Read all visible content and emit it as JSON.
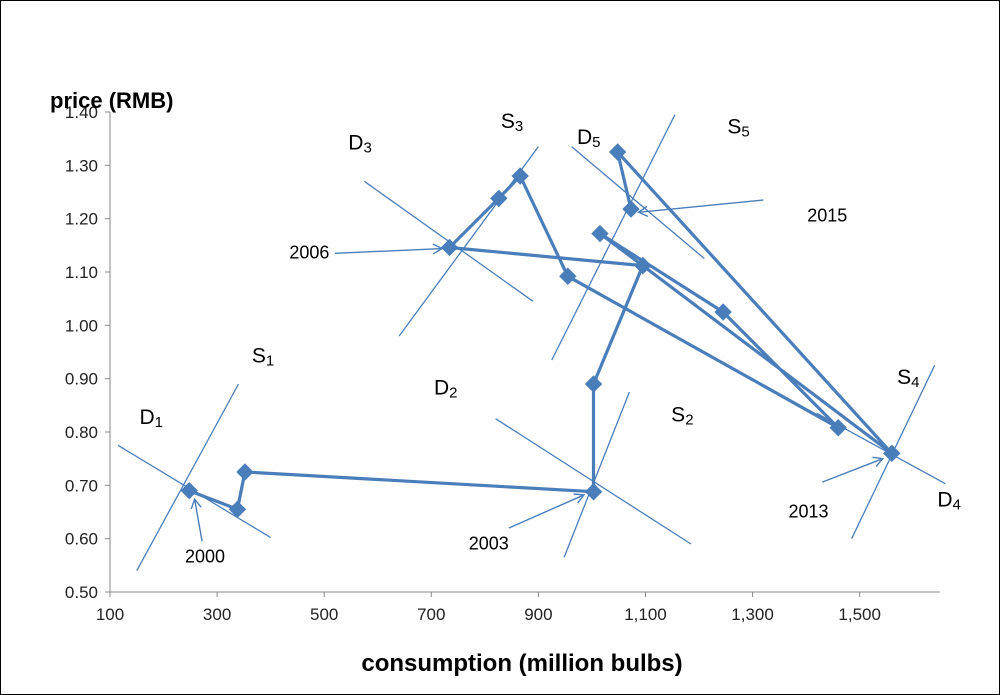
{
  "chart_data": {
    "type": "line",
    "ylabel": "price (RMB)",
    "xlabel": "consumption (million bulbs)",
    "xlim": [
      100,
      1650
    ],
    "ylim": [
      0.5,
      1.4
    ],
    "xticks": [
      100,
      300,
      500,
      700,
      900,
      1100,
      1300,
      1500
    ],
    "xtick_labels": [
      "100",
      "300",
      "500",
      "700",
      "900",
      "1,100",
      "1,300",
      "1,500"
    ],
    "yticks": [
      0.5,
      0.6,
      0.7,
      0.8,
      0.9,
      1.0,
      1.1,
      1.2,
      1.3,
      1.4
    ],
    "ytick_labels": [
      "0.50",
      "0.60",
      "0.70",
      "0.80",
      "0.90",
      "1.00",
      "1.10",
      "1.20",
      "1.30",
      "1.40"
    ],
    "grid": false,
    "series": [
      {
        "points": [
          {
            "x": 248,
            "y": 0.69
          },
          {
            "x": 338,
            "y": 0.655
          },
          {
            "x": 352,
            "y": 0.725
          },
          {
            "x": 1003,
            "y": 0.688
          },
          {
            "x": 1003,
            "y": 0.89
          },
          {
            "x": 1095,
            "y": 1.112
          },
          {
            "x": 1015,
            "y": 1.172
          },
          {
            "x": 1245,
            "y": 1.025
          },
          {
            "x": 1460,
            "y": 0.808
          },
          {
            "x": 955,
            "y": 1.092
          },
          {
            "x": 866,
            "y": 1.28
          },
          {
            "x": 826,
            "y": 1.238
          },
          {
            "x": 734,
            "y": 1.146
          },
          {
            "x": 1095,
            "y": 1.112
          },
          {
            "x": 1560,
            "y": 0.76
          },
          {
            "x": 1048,
            "y": 1.325
          },
          {
            "x": 1073,
            "y": 1.218
          }
        ]
      }
    ],
    "curve_lines": [
      {
        "label": "S",
        "sub": "1",
        "from": {
          "x": 150,
          "y": 0.54
        },
        "to": {
          "x": 340,
          "y": 0.89
        },
        "label_pos": {
          "x": 365,
          "y": 0.93
        }
      },
      {
        "label": "D",
        "sub": "1",
        "from": {
          "x": 115,
          "y": 0.775
        },
        "to": {
          "x": 400,
          "y": 0.602
        },
        "label_pos": {
          "x": 155,
          "y": 0.815
        }
      },
      {
        "label": "S",
        "sub": "2",
        "from": {
          "x": 948,
          "y": 0.565
        },
        "to": {
          "x": 1070,
          "y": 0.875
        },
        "label_pos": {
          "x": 1148,
          "y": 0.82
        }
      },
      {
        "label": "D",
        "sub": "2",
        "from": {
          "x": 820,
          "y": 0.825
        },
        "to": {
          "x": 1185,
          "y": 0.59
        },
        "label_pos": {
          "x": 705,
          "y": 0.87
        }
      },
      {
        "label": "S",
        "sub": "3",
        "from": {
          "x": 640,
          "y": 0.98
        },
        "to": {
          "x": 900,
          "y": 1.335
        },
        "label_pos": {
          "x": 830,
          "y": 1.37
        }
      },
      {
        "label": "D",
        "sub": "3",
        "from": {
          "x": 575,
          "y": 1.27
        },
        "to": {
          "x": 890,
          "y": 1.045
        },
        "label_pos": {
          "x": 545,
          "y": 1.33
        }
      },
      {
        "label": "S",
        "sub": "4",
        "from": {
          "x": 1485,
          "y": 0.6
        },
        "to": {
          "x": 1640,
          "y": 0.925
        },
        "label_pos": {
          "x": 1570,
          "y": 0.89
        }
      },
      {
        "label": "D",
        "sub": "4",
        "from": {
          "x": 1420,
          "y": 0.835
        },
        "to": {
          "x": 1660,
          "y": 0.703
        },
        "label_pos": {
          "x": 1645,
          "y": 0.66
        }
      },
      {
        "label": "S",
        "sub": "5",
        "from": {
          "x": 925,
          "y": 0.935
        },
        "to": {
          "x": 1155,
          "y": 1.395
        },
        "label_pos": {
          "x": 1253,
          "y": 1.36
        }
      },
      {
        "label": "D",
        "sub": "5",
        "from": {
          "x": 962,
          "y": 1.335
        },
        "to": {
          "x": 1210,
          "y": 1.125
        },
        "label_pos": {
          "x": 972,
          "y": 1.34
        }
      }
    ],
    "annotations": [
      {
        "text": "2000",
        "label_pos": {
          "x": 240,
          "y": 0.555
        },
        "arrow_from": {
          "x": 272,
          "y": 0.595
        },
        "arrow_to": {
          "x": 258,
          "y": 0.674
        }
      },
      {
        "text": "2003",
        "label_pos": {
          "x": 770,
          "y": 0.58
        },
        "arrow_from": {
          "x": 845,
          "y": 0.62
        },
        "arrow_to": {
          "x": 985,
          "y": 0.682
        }
      },
      {
        "text": "2006",
        "label_pos": {
          "x": 435,
          "y": 1.125
        },
        "arrow_from": {
          "x": 520,
          "y": 1.135
        },
        "arrow_to": {
          "x": 720,
          "y": 1.144
        }
      },
      {
        "text": "2013",
        "label_pos": {
          "x": 1367,
          "y": 0.64
        },
        "arrow_from": {
          "x": 1430,
          "y": 0.706
        },
        "arrow_to": {
          "x": 1543,
          "y": 0.75
        }
      },
      {
        "text": "2015",
        "label_pos": {
          "x": 1402,
          "y": 1.195
        },
        "arrow_from": {
          "x": 1320,
          "y": 1.235
        },
        "arrow_to": {
          "x": 1087,
          "y": 1.212
        }
      }
    ]
  }
}
